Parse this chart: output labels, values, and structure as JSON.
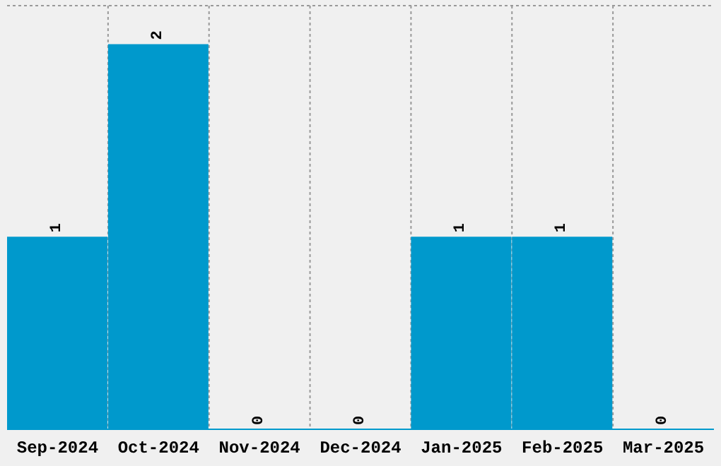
{
  "chart_data": {
    "type": "bar",
    "categories": [
      "Sep-2024",
      "Oct-2024",
      "Nov-2024",
      "Dec-2024",
      "Jan-2025",
      "Feb-2025",
      "Mar-2025"
    ],
    "values": [
      1,
      2,
      0,
      0,
      1,
      1,
      0
    ],
    "color": "#0099cc",
    "data_labels": true,
    "ylim": [
      0,
      2.2
    ],
    "grid": true,
    "tick_labels": "x"
  }
}
